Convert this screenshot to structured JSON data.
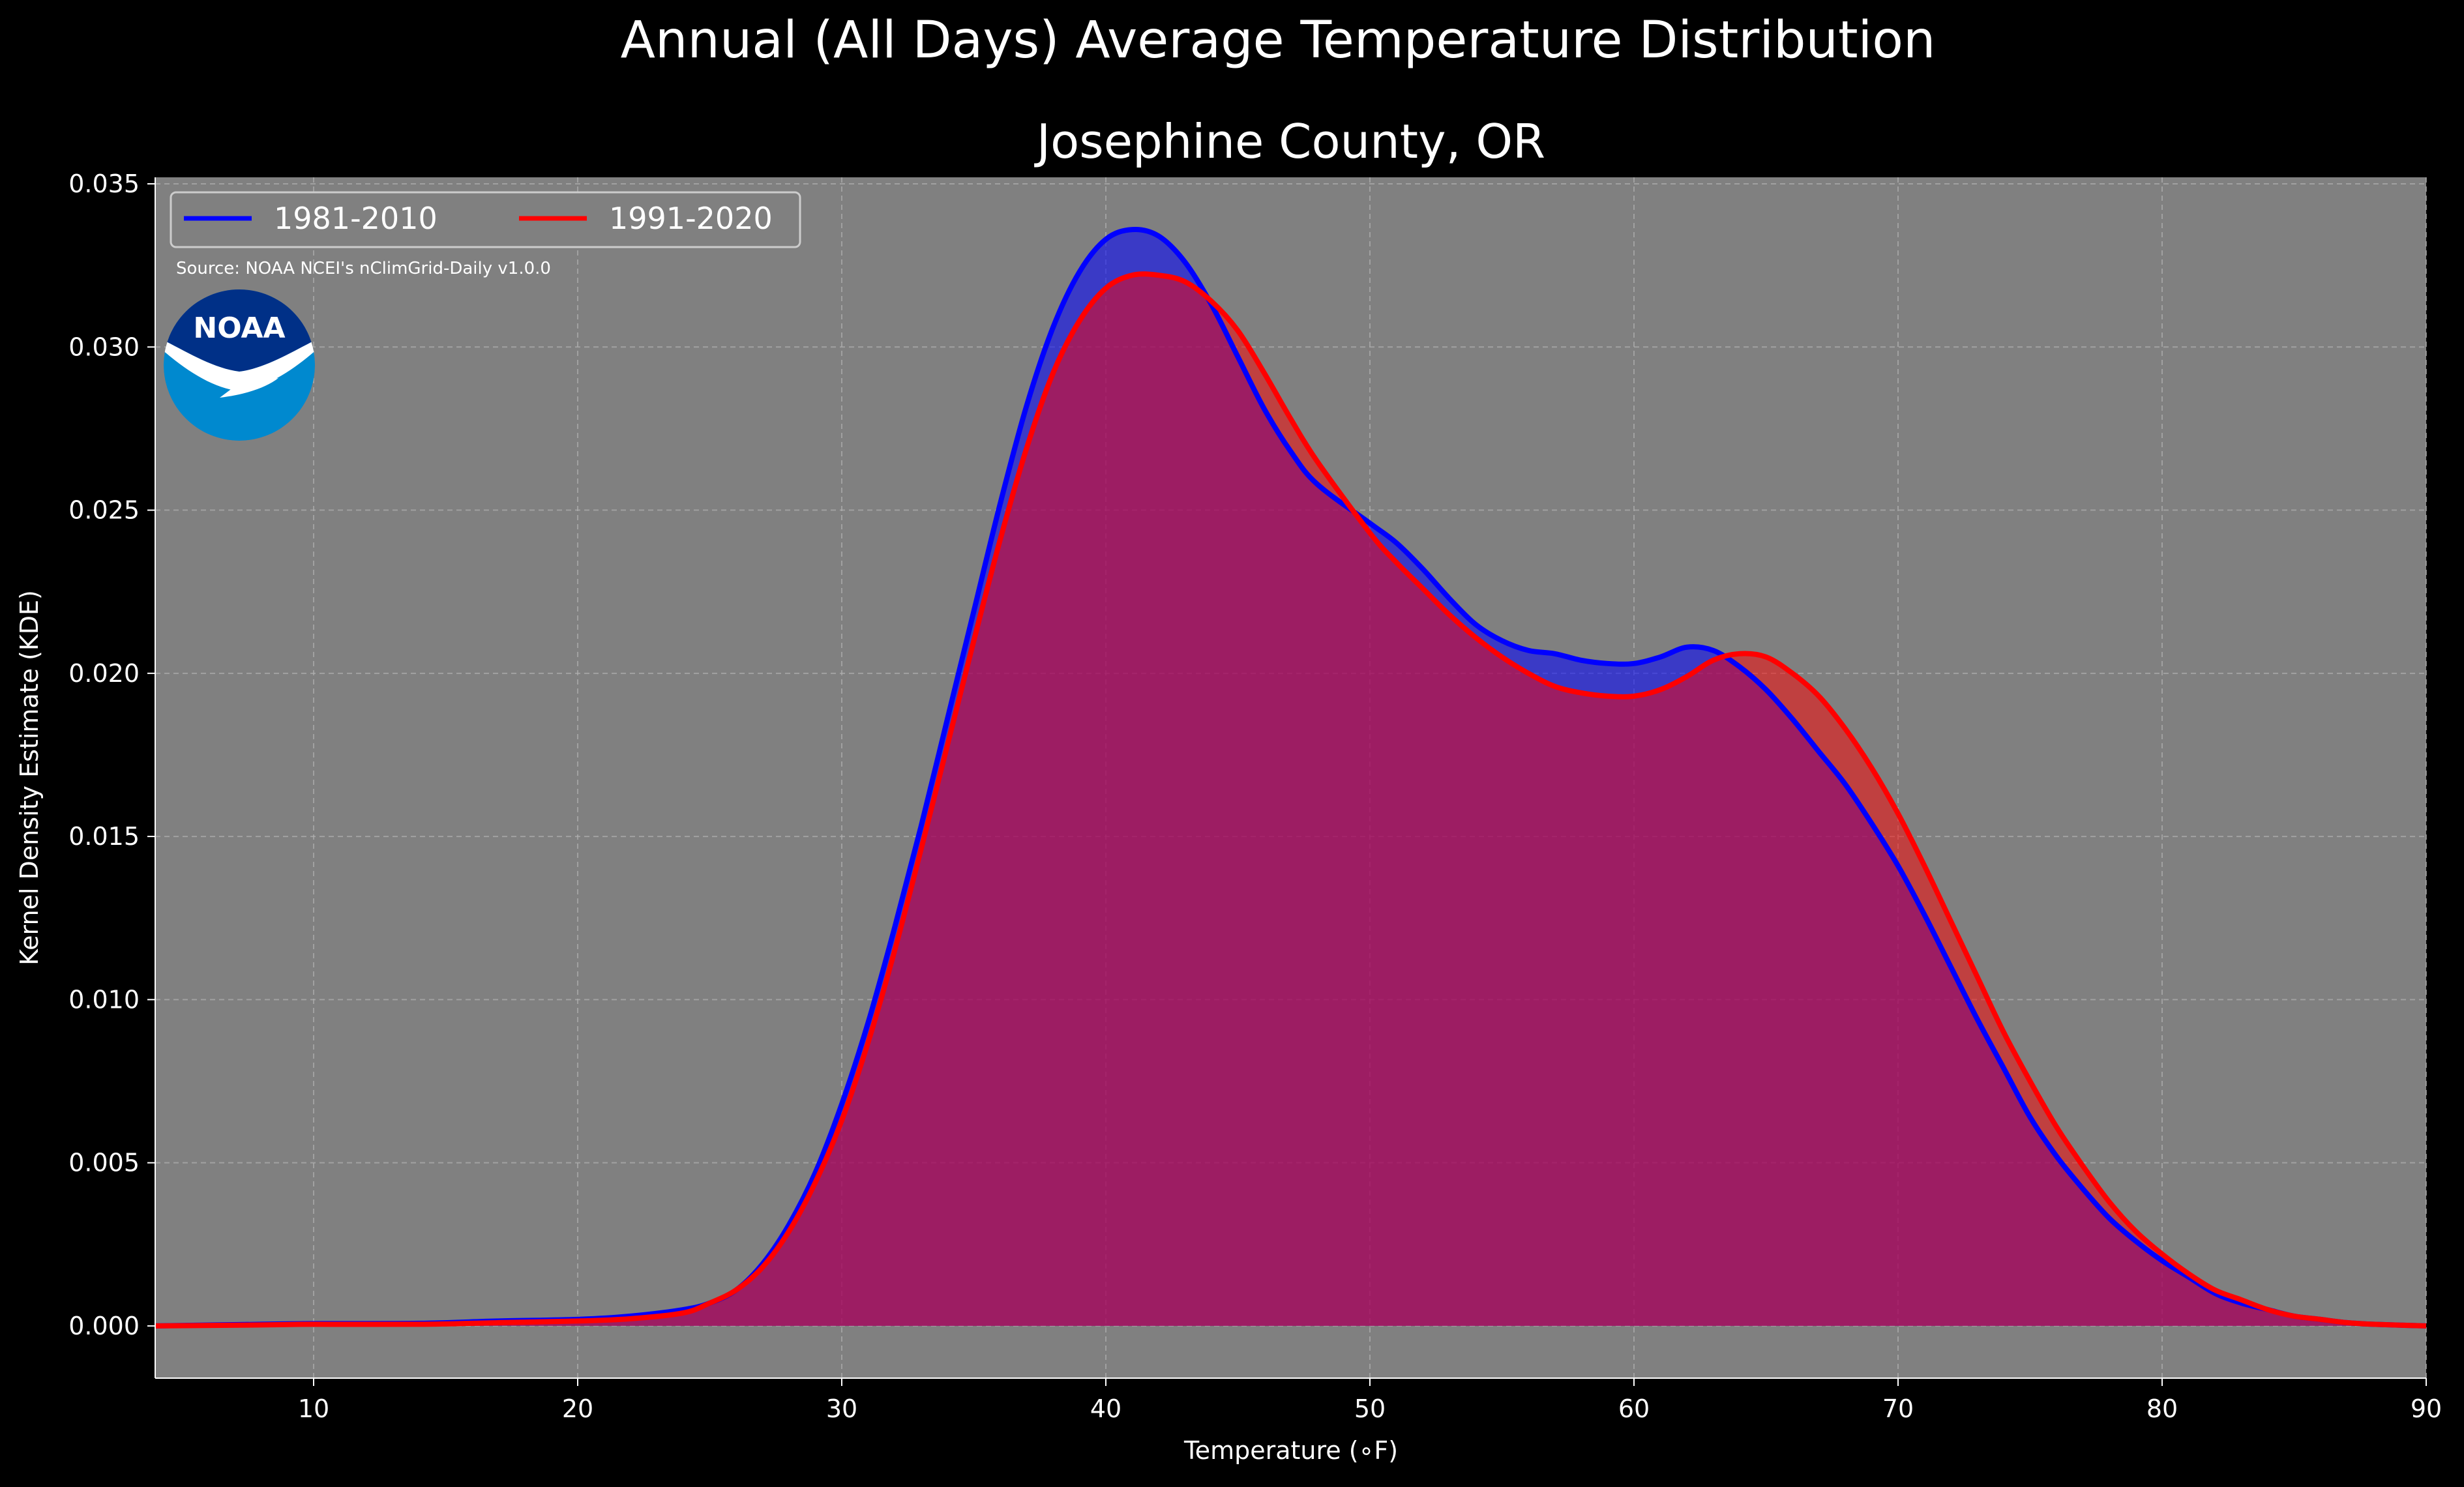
{
  "chart_data": {
    "type": "area",
    "title": "Annual (All Days) Average Temperature Distribution",
    "subtitle": "Josephine County, OR",
    "xlabel": "Temperature ($^\\circ$F)",
    "xlabel_display": "Temperature (∘F)",
    "ylabel": "Kernel Density Estimate (KDE)",
    "xlim": [
      4,
      90
    ],
    "ylim": [
      -0.0016,
      0.0352
    ],
    "x_ticks": [
      10,
      20,
      30,
      40,
      50,
      60,
      70,
      80,
      90
    ],
    "x_tick_labels": [
      "10",
      "20",
      "30",
      "40",
      "50",
      "60",
      "70",
      "80",
      "90"
    ],
    "y_ticks": [
      0.0,
      0.005,
      0.01,
      0.015,
      0.02,
      0.025,
      0.03,
      0.035
    ],
    "y_tick_labels": [
      "0.000",
      "0.005",
      "0.010",
      "0.015",
      "0.020",
      "0.025",
      "0.030",
      "0.035"
    ],
    "grid": true,
    "legend_placement": "top-left",
    "source_note": "Source: NOAA NCEI's nClimGrid-Daily v1.0.0",
    "logo_text": "NOAA",
    "colors": {
      "background": "#000000",
      "plot_background": "#808080",
      "series_1981": "#0000ff",
      "series_1991": "#ff0000",
      "overlap_fill": "#9e1f5e"
    },
    "series": [
      {
        "name": "1981-2010",
        "color": "#0000ff",
        "x": [
          4,
          8,
          10,
          14,
          17,
          20,
          22,
          24,
          25,
          26,
          27,
          28,
          29,
          30,
          31,
          32,
          33,
          34,
          35,
          36,
          37,
          38,
          39,
          40,
          41,
          42,
          43,
          44,
          45,
          46,
          47,
          48,
          50,
          51,
          52,
          53,
          54,
          55,
          56,
          57,
          58,
          59,
          60,
          61,
          62,
          63,
          64,
          65,
          66,
          67,
          68,
          69,
          70,
          71,
          72,
          73,
          74,
          75,
          76,
          77,
          78,
          79,
          80,
          81,
          82,
          83,
          84,
          85,
          86,
          87,
          88,
          90
        ],
        "values": [
          0.0,
          5e-05,
          7e-05,
          8e-05,
          0.00015,
          0.0002,
          0.0003,
          0.0005,
          0.0007,
          0.0011,
          0.0019,
          0.0031,
          0.0047,
          0.0068,
          0.0093,
          0.0122,
          0.0153,
          0.0186,
          0.0219,
          0.0252,
          0.0282,
          0.0306,
          0.0323,
          0.0333,
          0.0336,
          0.0334,
          0.0326,
          0.0313,
          0.0297,
          0.0281,
          0.0268,
          0.0258,
          0.0246,
          0.024,
          0.0232,
          0.0223,
          0.0215,
          0.021,
          0.0207,
          0.0206,
          0.0204,
          0.0203,
          0.0203,
          0.0205,
          0.0208,
          0.0207,
          0.0202,
          0.0195,
          0.0186,
          0.0176,
          0.0166,
          0.0154,
          0.0141,
          0.0126,
          0.011,
          0.0094,
          0.0079,
          0.0064,
          0.0052,
          0.0042,
          0.0033,
          0.0026,
          0.002,
          0.0015,
          0.001,
          0.0007,
          0.0005,
          0.0003,
          0.0002,
          0.0001,
          5e-05,
          0.0
        ]
      },
      {
        "name": "1991-2020",
        "color": "#ff0000",
        "x": [
          4,
          8,
          10,
          14,
          17,
          20,
          22,
          24,
          25,
          26,
          27,
          28,
          29,
          30,
          31,
          32,
          33,
          34,
          35,
          36,
          37,
          38,
          39,
          40,
          41,
          42,
          43,
          44,
          45,
          46,
          47,
          48,
          50,
          51,
          52,
          53,
          54,
          55,
          56,
          57,
          58,
          59,
          60,
          61,
          62,
          63,
          64,
          65,
          66,
          67,
          68,
          69,
          70,
          71,
          72,
          73,
          74,
          75,
          76,
          77,
          78,
          79,
          80,
          81,
          82,
          83,
          84,
          85,
          86,
          87,
          88,
          90
        ],
        "values": [
          0.0,
          3e-05,
          5e-05,
          5e-05,
          0.0001,
          0.00015,
          0.00022,
          0.0004,
          0.0007,
          0.0011,
          0.0018,
          0.0029,
          0.0044,
          0.0063,
          0.0087,
          0.0115,
          0.0146,
          0.0178,
          0.021,
          0.0241,
          0.0269,
          0.0292,
          0.0308,
          0.0318,
          0.0322,
          0.0322,
          0.032,
          0.0314,
          0.0305,
          0.0292,
          0.0278,
          0.0265,
          0.0243,
          0.0234,
          0.0226,
          0.0218,
          0.0211,
          0.0205,
          0.02,
          0.0196,
          0.0194,
          0.0193,
          0.0193,
          0.0195,
          0.0199,
          0.0204,
          0.0206,
          0.0205,
          0.02,
          0.0193,
          0.0183,
          0.0171,
          0.0157,
          0.0141,
          0.0124,
          0.0107,
          0.009,
          0.0075,
          0.0061,
          0.0049,
          0.0038,
          0.0029,
          0.0022,
          0.0016,
          0.0011,
          0.0008,
          0.0005,
          0.0003,
          0.0002,
          0.0001,
          5e-05,
          0.0
        ]
      }
    ]
  }
}
